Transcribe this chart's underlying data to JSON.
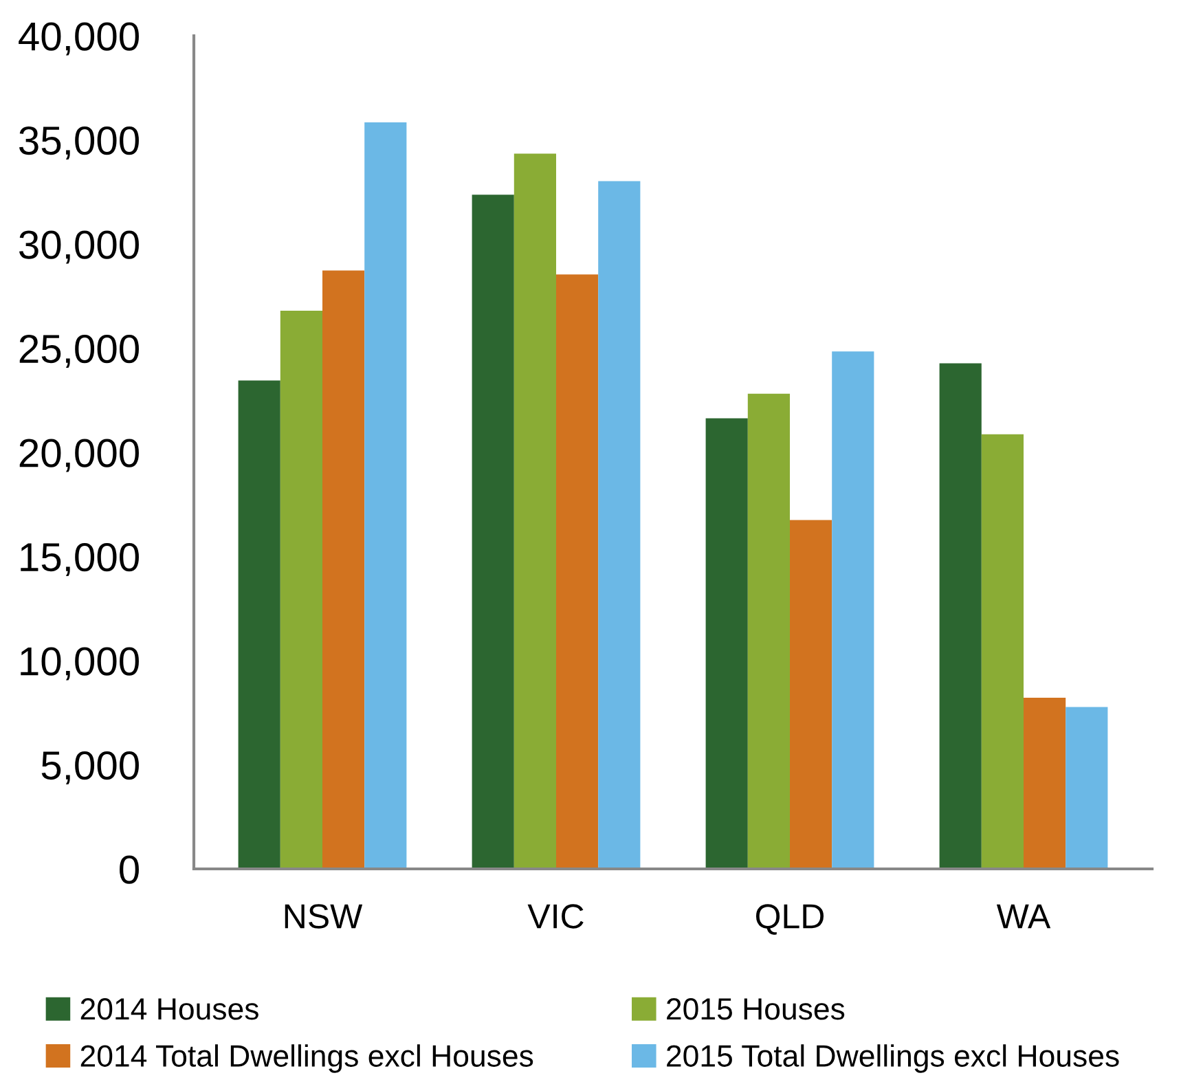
{
  "chart_data": {
    "type": "bar",
    "categories": [
      "NSW",
      "VIC",
      "QLD",
      "WA"
    ],
    "series": [
      {
        "name": "2014 Houses",
        "color": "#2c6630",
        "values": [
          23450,
          32370,
          21630,
          24270
        ]
      },
      {
        "name": "2015 Houses",
        "color": "#8aac35",
        "values": [
          26800,
          34340,
          22810,
          20870
        ]
      },
      {
        "name": "2014 Total Dwellings excl Houses",
        "color": "#d2731f",
        "values": [
          28730,
          28540,
          16750,
          8220
        ]
      },
      {
        "name": "2015 Total Dwellings excl Houses",
        "color": "#6bb8e6",
        "values": [
          35840,
          33020,
          24840,
          7770
        ]
      }
    ],
    "ylim": [
      0,
      40000
    ],
    "yticks": [
      {
        "value": 0,
        "label": "0"
      },
      {
        "value": 5000,
        "label": "5,000"
      },
      {
        "value": 10000,
        "label": "10,000"
      },
      {
        "value": 15000,
        "label": "15,000"
      },
      {
        "value": 20000,
        "label": "20,000"
      },
      {
        "value": 25000,
        "label": "25,000"
      },
      {
        "value": 30000,
        "label": "30,000"
      },
      {
        "value": 35000,
        "label": "35,000"
      },
      {
        "value": 40000,
        "label": "40,000"
      }
    ],
    "grid": false,
    "legend": "bottom"
  }
}
